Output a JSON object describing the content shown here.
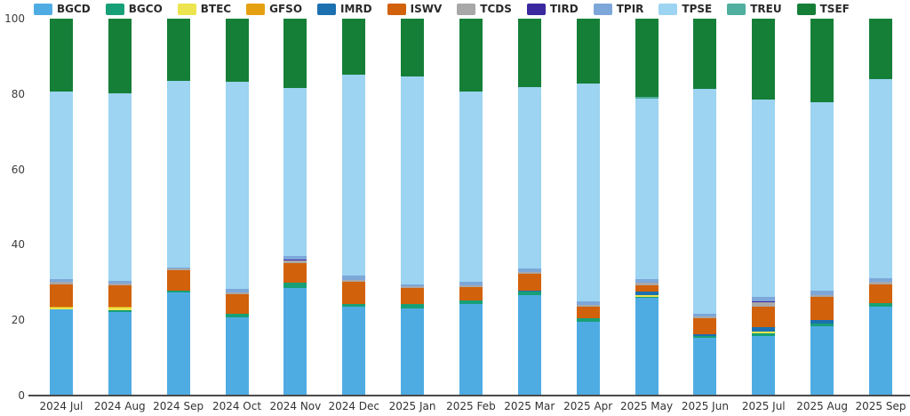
{
  "chart_data": {
    "type": "bar",
    "variant": "stacked-vertical",
    "title": "",
    "xlabel": "",
    "ylabel": "",
    "ylim": [
      0,
      100
    ],
    "yticks": [
      0,
      20,
      40,
      60,
      80,
      100
    ],
    "grid": false,
    "legend_position": "top",
    "stack_total": 100,
    "background_color": "#ffffff",
    "axis_line_color": "#4a4a4a",
    "tick_label_color": "#3c3c3c",
    "categories": [
      "2024 Jul",
      "2024 Aug",
      "2024 Sep",
      "2024 Oct",
      "2024 Nov",
      "2024 Dec",
      "2025 Jan",
      "2025 Feb",
      "2025 Mar",
      "2025 Apr",
      "2025 May",
      "2025 Jun",
      "2025 Jul",
      "2025 Aug",
      "2025 Sep"
    ],
    "series": [
      {
        "name": "BGCD",
        "color": "#4FACE3",
        "values": [
          22.8,
          22.2,
          27.4,
          20.8,
          28.6,
          23.6,
          23.1,
          24.2,
          26.7,
          19.5,
          25.9,
          15.3,
          15.9,
          18.5,
          23.7
        ]
      },
      {
        "name": "BGCO",
        "color": "#17A077",
        "values": [
          0,
          0.5,
          0.5,
          0.8,
          1.3,
          0.8,
          1.1,
          1.0,
          0.8,
          1.1,
          0.4,
          0.5,
          0.6,
          0.7,
          0.8
        ]
      },
      {
        "name": "BTEC",
        "color": "#ECE54F",
        "values": [
          0.6,
          0.7,
          0,
          0,
          0,
          0,
          0,
          0,
          0,
          0,
          0.3,
          0,
          0.4,
          0,
          0
        ]
      },
      {
        "name": "GFSO",
        "color": "#E5A012",
        "values": [
          0.3,
          0.3,
          0,
          0,
          0,
          0,
          0,
          0,
          0,
          0,
          0,
          0,
          0,
          0,
          0
        ]
      },
      {
        "name": "IMRD",
        "color": "#1C70B0",
        "values": [
          0,
          0,
          0,
          0,
          0,
          0,
          0,
          0,
          0.4,
          0,
          0.9,
          0.5,
          1.2,
          0.8,
          0
        ]
      },
      {
        "name": "ISWV",
        "color": "#D2610B",
        "values": [
          5.8,
          5.5,
          5.4,
          5.4,
          5.3,
          5.7,
          4.3,
          3.5,
          4.5,
          3.0,
          1.8,
          4.3,
          5.5,
          6.1,
          5.0
        ]
      },
      {
        "name": "TCDS",
        "color": "#A8A8A8",
        "values": [
          0.7,
          0.5,
          0.4,
          0.4,
          0.7,
          0.6,
          0.5,
          0.6,
          0.5,
          0.4,
          0.6,
          0.4,
          1.2,
          0.6,
          0.8
        ]
      },
      {
        "name": "TIRD",
        "color": "#39289E",
        "values": [
          0,
          0,
          0,
          0,
          0.3,
          0,
          0,
          0,
          0,
          0,
          0,
          0,
          0.3,
          0,
          0
        ]
      },
      {
        "name": "TPIR",
        "color": "#7DA7D9",
        "values": [
          0.8,
          0.7,
          0.3,
          1.0,
          0.9,
          1.1,
          0.4,
          1.0,
          0.9,
          0.9,
          0.9,
          0.6,
          1.0,
          1.2,
          0.9
        ]
      },
      {
        "name": "TPSE",
        "color": "#9CD4F1",
        "values": [
          49.7,
          49.8,
          49.5,
          54.9,
          44.5,
          53.3,
          55.3,
          50.4,
          48.0,
          57.9,
          48.0,
          59.8,
          52.4,
          49.9,
          52.8
        ]
      },
      {
        "name": "TREU",
        "color": "#50AF9E",
        "values": [
          0,
          0,
          0,
          0,
          0,
          0,
          0,
          0,
          0,
          0,
          0.4,
          0,
          0,
          0,
          0
        ]
      },
      {
        "name": "TSEF",
        "color": "#157F38",
        "values": [
          19.3,
          19.8,
          16.5,
          16.7,
          18.4,
          14.9,
          15.3,
          19.3,
          18.2,
          17.2,
          20.8,
          18.6,
          21.5,
          22.2,
          16.0
        ]
      }
    ]
  }
}
